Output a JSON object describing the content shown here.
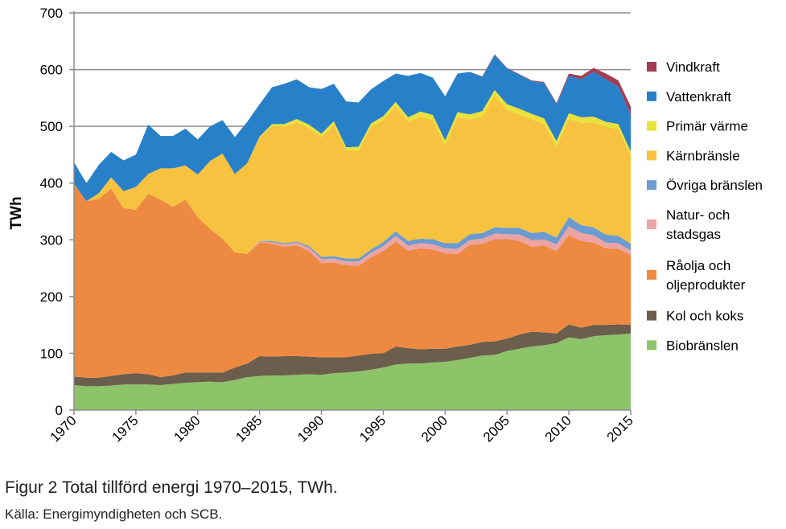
{
  "chart_data": {
    "type": "area",
    "stacked": true,
    "title": "",
    "xlabel": "",
    "ylabel": "TWh",
    "ylim": [
      0,
      700
    ],
    "yticks": [
      0,
      100,
      200,
      300,
      400,
      500,
      600,
      700
    ],
    "xticks": [
      1970,
      1975,
      1980,
      1985,
      1990,
      1995,
      2000,
      2005,
      2010,
      2015
    ],
    "grid": "horizontal",
    "legend_position": "right",
    "x": [
      1970,
      1971,
      1972,
      1973,
      1974,
      1975,
      1976,
      1977,
      1978,
      1979,
      1980,
      1981,
      1982,
      1983,
      1984,
      1985,
      1986,
      1987,
      1988,
      1989,
      1990,
      1991,
      1992,
      1993,
      1994,
      1995,
      1996,
      1997,
      1998,
      1999,
      2000,
      2001,
      2002,
      2003,
      2004,
      2005,
      2006,
      2007,
      2008,
      2009,
      2010,
      2011,
      2012,
      2013,
      2014,
      2015
    ],
    "series": [
      {
        "name": "Biobränslen",
        "color": "#8dc46a",
        "values": [
          44,
          42,
          42,
          43,
          45,
          45,
          45,
          44,
          46,
          48,
          49,
          50,
          49,
          53,
          58,
          60,
          61,
          61,
          62,
          63,
          62,
          65,
          66,
          68,
          71,
          75,
          80,
          82,
          82,
          84,
          85,
          88,
          92,
          96,
          97,
          104,
          108,
          112,
          114,
          118,
          128,
          125,
          130,
          132,
          133,
          135
        ]
      },
      {
        "name": "Kol och koks",
        "color": "#6b5e4c",
        "values": [
          15,
          15,
          15,
          17,
          18,
          20,
          18,
          14,
          15,
          18,
          17,
          16,
          17,
          22,
          24,
          35,
          33,
          34,
          33,
          31,
          31,
          28,
          27,
          28,
          28,
          25,
          32,
          27,
          25,
          24,
          23,
          24,
          23,
          24,
          24,
          22,
          25,
          26,
          23,
          17,
          23,
          20,
          20,
          18,
          18,
          15
        ]
      },
      {
        "name": "Råolja och oljeprodukter",
        "color": "#ed8940",
        "values": [
          340,
          311,
          315,
          330,
          293,
          288,
          318,
          313,
          297,
          305,
          274,
          253,
          236,
          203,
          193,
          200,
          199,
          193,
          195,
          186,
          166,
          167,
          162,
          158,
          170,
          180,
          185,
          172,
          178,
          175,
          168,
          163,
          176,
          173,
          180,
          175,
          165,
          150,
          153,
          145,
          157,
          153,
          145,
          135,
          133,
          123
        ]
      },
      {
        "name": "Natur- och stadsgas",
        "color": "#eba3a3",
        "values": [
          0,
          0,
          0,
          0,
          0,
          0,
          0,
          0,
          0,
          0,
          0,
          0,
          0,
          0,
          0,
          2,
          3,
          4,
          5,
          6,
          7,
          7,
          7,
          8,
          8,
          9,
          10,
          9,
          9,
          9,
          9,
          9,
          9,
          9,
          10,
          9,
          11,
          12,
          11,
          12,
          16,
          14,
          13,
          10,
          10,
          8
        ]
      },
      {
        "name": "Övriga bränslen",
        "color": "#6b9bd0",
        "values": [
          0,
          0,
          0,
          0,
          0,
          0,
          0,
          0,
          0,
          0,
          0,
          0,
          0,
          0,
          0,
          1,
          2,
          2,
          2,
          3,
          4,
          4,
          5,
          5,
          6,
          7,
          8,
          8,
          8,
          9,
          9,
          10,
          10,
          10,
          11,
          11,
          12,
          12,
          13,
          12,
          16,
          14,
          14,
          14,
          13,
          12
        ]
      },
      {
        "name": "Kärnbränsle",
        "color": "#f6c23f",
        "values": [
          0,
          0,
          10,
          20,
          30,
          40,
          35,
          55,
          68,
          60,
          75,
          120,
          150,
          138,
          160,
          182,
          202,
          205,
          210,
          208,
          211,
          232,
          190,
          190,
          215,
          215,
          220,
          210,
          215,
          210,
          172,
          222,
          202,
          205,
          232,
          208,
          200,
          200,
          190,
          160,
          173,
          180,
          185,
          190,
          188,
          155
        ]
      },
      {
        "name": "Primär värme",
        "color": "#eae13a",
        "values": [
          0,
          0,
          0,
          0,
          0,
          0,
          0,
          0,
          0,
          0,
          0,
          0,
          0,
          0,
          0,
          2,
          4,
          5,
          6,
          6,
          6,
          6,
          6,
          7,
          7,
          7,
          8,
          8,
          9,
          9,
          9,
          9,
          9,
          10,
          10,
          10,
          10,
          10,
          10,
          10,
          10,
          10,
          10,
          9,
          9,
          8
        ]
      },
      {
        "name": "Vattenkraft",
        "color": "#2880c8",
        "values": [
          38,
          32,
          50,
          45,
          54,
          57,
          87,
          57,
          57,
          65,
          62,
          61,
          59,
          65,
          73,
          57,
          65,
          71,
          70,
          66,
          79,
          66,
          81,
          78,
          60,
          62,
          50,
          73,
          68,
          66,
          78,
          68,
          75,
          60,
          62,
          63,
          60,
          58,
          62,
          65,
          66,
          67,
          79,
          75,
          66,
          64
        ]
      },
      {
        "name": "Vindkraft",
        "color": "#a33c53",
        "values": [
          0,
          0,
          0,
          0,
          0,
          0,
          0,
          0,
          0,
          0,
          0,
          0,
          0,
          0,
          0,
          0,
          0,
          0,
          0,
          0,
          0,
          0,
          0,
          0,
          0,
          0,
          0,
          0,
          0,
          0,
          0,
          0,
          0,
          1,
          1,
          1,
          1,
          1,
          2,
          2,
          4,
          6,
          7,
          10,
          11,
          15
        ]
      }
    ]
  },
  "legend": [
    {
      "lines": [
        "Vindkraft"
      ],
      "color": "#a33c53"
    },
    {
      "lines": [
        "Vattenkraft"
      ],
      "color": "#2880c8"
    },
    {
      "lines": [
        "Primär värme"
      ],
      "color": "#eae13a"
    },
    {
      "lines": [
        "Kärnbränsle"
      ],
      "color": "#f6c23f"
    },
    {
      "lines": [
        "Övriga bränslen"
      ],
      "color": "#6b9bd0"
    },
    {
      "lines": [
        "Natur- och",
        "stadsgas"
      ],
      "color": "#eba3a3"
    },
    {
      "lines": [
        "Råolja och",
        "oljeprodukter"
      ],
      "color": "#ed8940"
    },
    {
      "lines": [
        "Kol och koks"
      ],
      "color": "#6b5e4c"
    },
    {
      "lines": [
        "Biobränslen"
      ],
      "color": "#8dc46a"
    }
  ],
  "caption": {
    "figure": "Figur 2 Total tillförd energi 1970–2015, TWh.",
    "source": "Källa: Energimyndigheten och SCB."
  }
}
